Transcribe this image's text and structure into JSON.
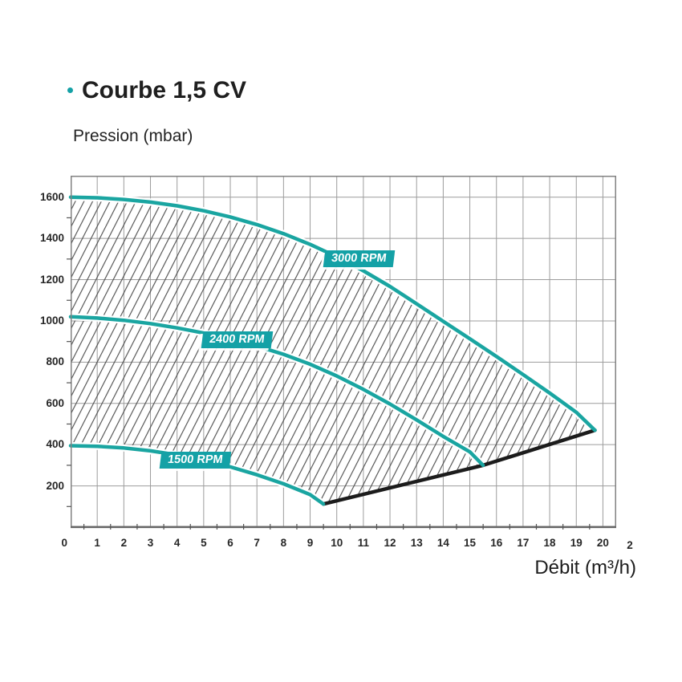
{
  "header": {
    "title": "Courbe 1,5 CV"
  },
  "axis_titles": {
    "y": "Pression (mbar)",
    "x": "Débit (m³/h)"
  },
  "colors": {
    "teal_accent": "#14a1a6",
    "curve_teal": "#1aa5a1",
    "limit_black": "#1c1c1c",
    "grid": "#9c9c9c",
    "plot_border": "#828282",
    "axis_line": "#666666",
    "hatch": "#4a4a4a",
    "tick": "#555555",
    "tick_text": "#262626",
    "curve_label_text": "#ffffff"
  },
  "chart_data": {
    "type": "line",
    "title": "Courbe 1,5 CV",
    "xlabel": "Débit (m³/h)",
    "ylabel": "Pression (mbar)",
    "xlim": [
      0,
      20.5
    ],
    "ylim": [
      0,
      1704
    ],
    "grid": {
      "x_step": 1,
      "y_step": 200,
      "grid_on": true
    },
    "x_ticks": [
      1,
      2,
      3,
      4,
      5,
      6,
      7,
      8,
      9,
      10,
      11,
      12,
      13,
      14,
      15,
      16,
      17,
      18,
      19,
      20
    ],
    "x_tick_clipped": {
      "label": "2",
      "x": 20.9
    },
    "origin_label": "0",
    "y_ticks": [
      200,
      400,
      600,
      800,
      1000,
      1200,
      1400,
      1600
    ],
    "x_minor_tick_step": 0.5,
    "y_minor_tick_step": 100,
    "series": [
      {
        "name": "3000 RPM",
        "role": "curve",
        "points": [
          [
            0,
            1600
          ],
          [
            1,
            1597
          ],
          [
            2,
            1589
          ],
          [
            3,
            1576
          ],
          [
            4,
            1558
          ],
          [
            5,
            1534
          ],
          [
            6,
            1504
          ],
          [
            7,
            1467
          ],
          [
            8,
            1423
          ],
          [
            9,
            1371
          ],
          [
            10,
            1311
          ],
          [
            11,
            1243
          ],
          [
            12,
            1167
          ],
          [
            13,
            1083
          ],
          [
            14,
            998
          ],
          [
            15,
            913
          ],
          [
            16,
            828
          ],
          [
            17,
            740
          ],
          [
            18,
            650
          ],
          [
            19,
            557
          ],
          [
            19.7,
            470
          ]
        ],
        "label": "3000 RPM",
        "label_anchor": [
          9.53,
          1342
        ]
      },
      {
        "name": "2400 RPM",
        "role": "curve",
        "points": [
          [
            0,
            1020
          ],
          [
            1,
            1014
          ],
          [
            2,
            1003
          ],
          [
            3,
            987
          ],
          [
            4,
            966
          ],
          [
            5,
            941
          ],
          [
            6,
            912
          ],
          [
            7,
            878
          ],
          [
            8,
            838
          ],
          [
            9,
            790
          ],
          [
            10,
            733
          ],
          [
            11,
            668
          ],
          [
            12,
            597
          ],
          [
            13,
            520
          ],
          [
            14,
            440
          ],
          [
            15,
            365
          ],
          [
            15.5,
            300
          ]
        ],
        "label": "2400 RPM",
        "label_anchor": [
          4.94,
          949
        ]
      },
      {
        "name": "1500 RPM",
        "role": "curve",
        "points": [
          [
            0,
            395
          ],
          [
            1,
            392
          ],
          [
            2,
            384
          ],
          [
            3,
            370
          ],
          [
            4,
            350
          ],
          [
            5,
            324
          ],
          [
            6,
            292
          ],
          [
            7,
            254
          ],
          [
            8,
            210
          ],
          [
            9,
            158
          ],
          [
            9.5,
            112
          ]
        ],
        "label": "1500 RPM",
        "label_anchor": [
          3.38,
          366
        ]
      },
      {
        "name": "operating-limit",
        "role": "limit-line",
        "points": [
          [
            9.5,
            112
          ],
          [
            15.5,
            300
          ],
          [
            19.7,
            470
          ]
        ]
      }
    ],
    "hatch_region": {
      "description": "diagonal-hatched operating envelope",
      "upper_boundary": "3000 RPM",
      "lower_boundary": [
        "1500 RPM",
        "operating-limit"
      ]
    }
  }
}
